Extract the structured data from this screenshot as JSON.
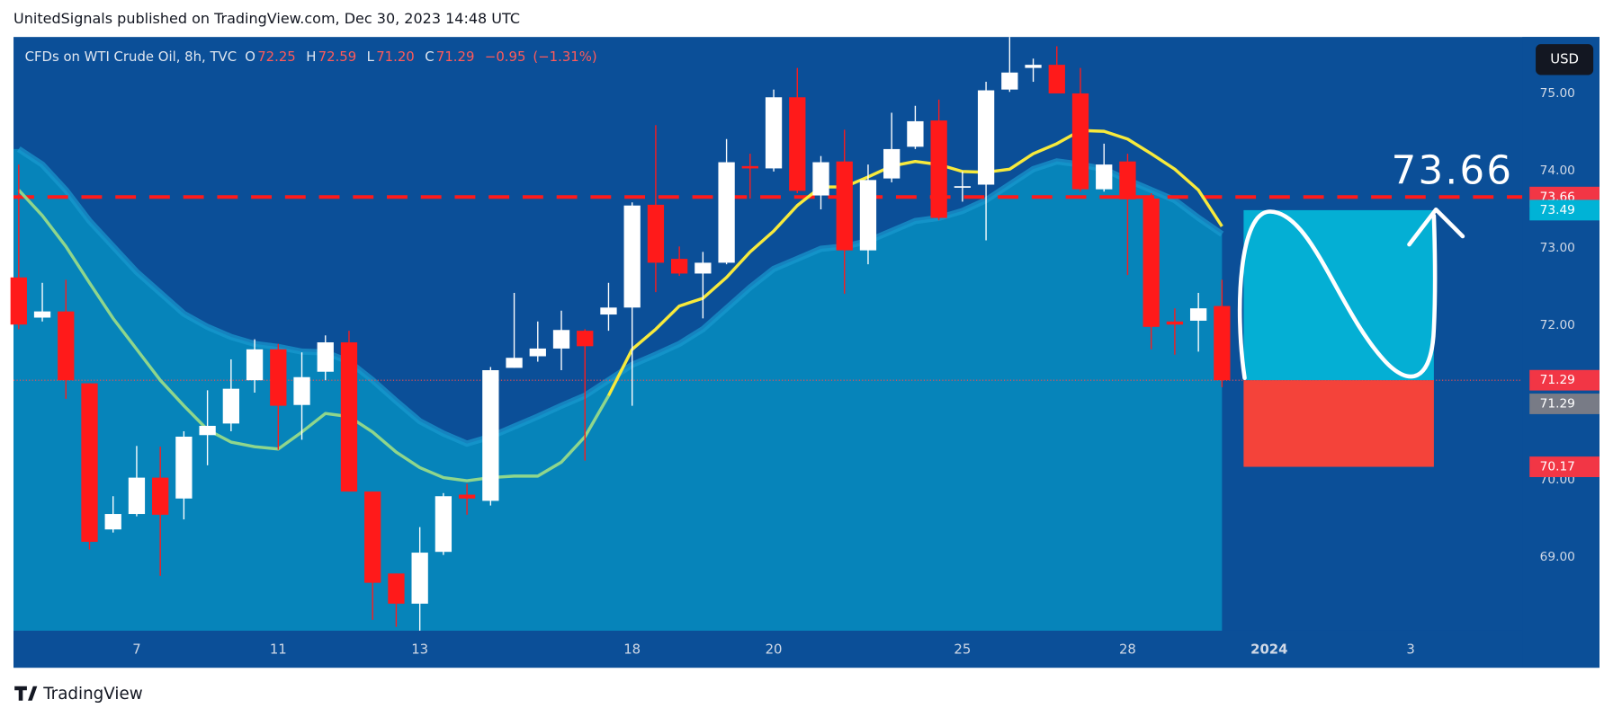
{
  "header": {
    "text": "UnitedSignals published on TradingView.com, Dec 30, 2023 14:48 UTC"
  },
  "footer": {
    "brand": "TradingView"
  },
  "currency_button": "USD",
  "legend": {
    "symbol": "CFDs on WTI Crude Oil, 8h, TVC",
    "letters": [
      "O",
      "H",
      "L",
      "C"
    ],
    "values": [
      72.25,
      72.59,
      71.2,
      71.29
    ],
    "value_labels": [
      "72.25",
      "72.59",
      "71.20",
      "71.29"
    ],
    "change": {
      "value": -0.95,
      "label": "−0.95"
    },
    "change_pct": {
      "value": -1.31,
      "label": "(−1.31%)"
    }
  },
  "chart_data": {
    "type": "candlestick",
    "up_color": "#ffffff",
    "down_color": "#ff1a1a",
    "open": [
      72.62,
      72.1,
      72.18,
      71.25,
      69.36,
      69.56,
      70.03,
      69.76,
      70.58,
      70.73,
      71.29,
      71.69,
      70.97,
      71.4,
      71.78,
      69.85,
      68.79,
      68.4,
      69.07,
      69.81,
      69.73,
      71.45,
      71.6,
      71.7,
      71.93,
      72.14,
      72.23,
      73.56,
      72.86,
      72.67,
      72.81,
      74.06,
      74.03,
      74.95,
      73.68,
      74.12,
      72.97,
      73.9,
      74.31,
      74.65,
      73.78,
      73.82,
      75.05,
      75.33,
      75.37,
      75.0,
      73.76,
      74.12,
      73.64,
      72.05,
      72.06,
      72.25
    ],
    "high": [
      74.08,
      72.55,
      72.59,
      71.25,
      69.79,
      70.44,
      70.43,
      70.63,
      71.16,
      71.56,
      71.82,
      71.76,
      71.65,
      71.87,
      71.93,
      69.85,
      68.79,
      69.39,
      69.83,
      69.95,
      71.46,
      72.42,
      72.05,
      72.19,
      71.95,
      72.55,
      73.59,
      74.59,
      73.02,
      72.95,
      74.41,
      74.22,
      75.05,
      75.33,
      74.19,
      74.53,
      74.08,
      74.75,
      74.84,
      74.92,
      73.99,
      75.15,
      75.73,
      75.45,
      75.61,
      75.33,
      74.35,
      74.22,
      73.71,
      72.22,
      72.42,
      72.59
    ],
    "low": [
      71.95,
      72.05,
      71.05,
      69.1,
      69.32,
      69.53,
      68.76,
      69.49,
      70.19,
      70.63,
      71.13,
      70.39,
      70.52,
      71.29,
      69.85,
      68.19,
      68.1,
      68.05,
      69.03,
      69.55,
      69.67,
      71.45,
      71.53,
      71.42,
      70.25,
      71.93,
      70.96,
      72.43,
      72.64,
      72.09,
      72.79,
      73.64,
      73.99,
      73.71,
      73.5,
      72.41,
      72.79,
      73.85,
      74.28,
      73.36,
      73.6,
      73.1,
      75.02,
      75.15,
      75.0,
      73.73,
      73.73,
      72.65,
      71.69,
      71.62,
      71.66,
      71.2
    ],
    "close": [
      72.01,
      72.18,
      71.29,
      69.2,
      69.56,
      70.03,
      69.55,
      70.56,
      70.7,
      71.18,
      71.69,
      70.96,
      71.33,
      71.78,
      69.85,
      68.67,
      68.4,
      69.06,
      69.79,
      69.76,
      71.42,
      71.58,
      71.7,
      71.94,
      71.73,
      72.23,
      73.55,
      72.81,
      72.67,
      72.81,
      74.11,
      74.03,
      74.95,
      73.74,
      74.11,
      72.97,
      73.88,
      74.28,
      74.64,
      73.39,
      73.8,
      75.04,
      75.27,
      75.37,
      75.0,
      73.76,
      74.08,
      73.63,
      71.98,
      72.01,
      72.22,
      71.29
    ],
    "lines": [
      {
        "color": "#8fd68c",
        "values": [
          73.75,
          73.42,
          73.02,
          72.55,
          72.09,
          71.69,
          71.29,
          70.96,
          70.65,
          70.49,
          70.43,
          70.4,
          70.62,
          70.86,
          70.82,
          70.62,
          70.36,
          70.16,
          70.03,
          69.99,
          70.03,
          70.05,
          70.05,
          70.23,
          70.56,
          71.09,
          null,
          null,
          null,
          null,
          null,
          null,
          null,
          null,
          null,
          null,
          null,
          null,
          null,
          null,
          null,
          null,
          null,
          null,
          null,
          null,
          null,
          null,
          null,
          null,
          null,
          null
        ]
      },
      {
        "color": "#f7ea3c",
        "values": [
          null,
          null,
          null,
          null,
          null,
          null,
          null,
          null,
          null,
          null,
          null,
          null,
          null,
          null,
          null,
          null,
          null,
          null,
          null,
          null,
          null,
          null,
          null,
          null,
          null,
          71.09,
          71.69,
          71.95,
          72.25,
          72.35,
          72.62,
          72.95,
          73.22,
          73.55,
          73.79,
          73.79,
          73.92,
          74.06,
          74.12,
          74.08,
          73.99,
          73.98,
          74.02,
          74.22,
          74.35,
          74.52,
          74.51,
          74.41,
          74.22,
          74.02,
          73.75,
          73.28
        ]
      }
    ],
    "band": {
      "color": "#0684ba",
      "edge_color": "#1a9ad0",
      "values": [
        74.28,
        74.08,
        73.75,
        73.35,
        73.02,
        72.69,
        72.42,
        72.15,
        71.98,
        71.85,
        71.76,
        71.72,
        71.66,
        71.65,
        71.53,
        71.29,
        71.02,
        70.76,
        70.6,
        70.47,
        70.56,
        70.69,
        70.82,
        70.96,
        71.09,
        71.29,
        71.49,
        71.62,
        71.76,
        71.95,
        72.22,
        72.49,
        72.73,
        72.86,
        72.99,
        73.02,
        73.09,
        73.22,
        73.35,
        73.39,
        73.48,
        73.62,
        73.82,
        74.02,
        74.12,
        74.08,
        74.02,
        73.88,
        73.75,
        73.62,
        73.39,
        73.18
      ]
    },
    "xlim": [
      -0.22,
      63.73
    ],
    "xticks": [
      {
        "value": 5,
        "label": "7"
      },
      {
        "value": 11,
        "label": "11"
      },
      {
        "value": 17,
        "label": "13"
      },
      {
        "value": 26,
        "label": "18"
      },
      {
        "value": 32,
        "label": "20"
      },
      {
        "value": 40,
        "label": "25"
      },
      {
        "value": 47,
        "label": "28"
      },
      {
        "value": 53,
        "label": "2024"
      },
      {
        "value": 59,
        "label": "3"
      }
    ],
    "ylim": [
      68.05,
      75.73
    ],
    "yticks": [
      {
        "value": 75,
        "label": "75.00"
      },
      {
        "value": 74,
        "label": "74.00"
      },
      {
        "value": 73,
        "label": "73.00"
      },
      {
        "value": 72,
        "label": "72.00"
      },
      {
        "value": 70,
        "label": "70.00"
      },
      {
        "value": 69,
        "label": "69.00"
      }
    ],
    "dashed_level": {
      "value": 73.66,
      "color": "#ff1a1a"
    },
    "last_price_line": {
      "value": 71.29,
      "color": "#ff4d4d"
    },
    "position": {
      "target": 73.49,
      "entry": 71.29,
      "stop": 70.17,
      "target_color": "#04afd4",
      "stop_color": "#f4433a"
    },
    "annotation_text": 73.66,
    "price_labels": [
      {
        "value": 73.66,
        "color": "#f23645"
      },
      {
        "value": 73.49,
        "color": "#00b3d6"
      },
      {
        "value": 71.29,
        "color": "#f23645"
      },
      {
        "value": 71.29,
        "color": "#787b86"
      },
      {
        "value": 70.17,
        "color": "#f23645"
      }
    ]
  }
}
